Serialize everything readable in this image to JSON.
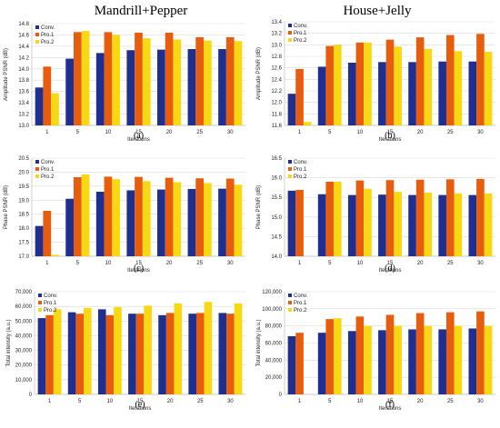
{
  "figure": {
    "left_title": "Mandrill+Pepper",
    "right_title": "House+Jelly"
  },
  "colors": {
    "Conv.": "#1f2f8f",
    "Pro.1": "#e85c0d",
    "Pro.2": "#f8d813"
  },
  "chart_data": [
    {
      "panel": "a",
      "type": "bar",
      "categories": [
        "1",
        "5",
        "10",
        "15",
        "20",
        "25",
        "30"
      ],
      "xlabel": "Iterations",
      "ylabel": "Amplitude PSNR (dB)",
      "ylim": [
        13,
        14.8
      ],
      "yticks": [
        13,
        13.2,
        13.4,
        13.6,
        13.8,
        14,
        14.2,
        14.4,
        14.6,
        14.8
      ],
      "ytick_format": 1,
      "grid": true,
      "legend": "top-left",
      "caption": "(a)",
      "series": [
        {
          "name": "Conv.",
          "values": [
            13.67,
            14.18,
            14.28,
            14.33,
            14.34,
            14.35,
            14.35
          ]
        },
        {
          "name": "Pro.1",
          "values": [
            14.04,
            14.65,
            14.65,
            14.64,
            14.64,
            14.56,
            14.56
          ]
        },
        {
          "name": "Pro.2",
          "values": [
            13.57,
            14.67,
            14.6,
            14.54,
            14.52,
            14.5,
            14.49
          ]
        }
      ]
    },
    {
      "panel": "b",
      "type": "bar",
      "categories": [
        "1",
        "5",
        "10",
        "15",
        "20",
        "25",
        "30"
      ],
      "xlabel": "Iterations",
      "ylabel": "Amplitude PSNR (dB)",
      "ylim": [
        11.6,
        13.4
      ],
      "yticks": [
        11.6,
        11.8,
        12,
        12.2,
        12.4,
        12.6,
        12.8,
        13,
        13.2,
        13.4
      ],
      "ytick_format": 1,
      "grid": true,
      "legend": "top-left",
      "caption": "(b)",
      "series": [
        {
          "name": "Conv.",
          "values": [
            12.15,
            12.62,
            12.69,
            12.7,
            12.7,
            12.71,
            12.71
          ]
        },
        {
          "name": "Pro.1",
          "values": [
            12.58,
            12.98,
            13.04,
            13.09,
            13.13,
            13.17,
            13.19
          ]
        },
        {
          "name": "Pro.2",
          "values": [
            11.66,
            13.0,
            13.04,
            12.97,
            12.93,
            12.89,
            12.88
          ]
        }
      ]
    },
    {
      "panel": "c",
      "type": "bar",
      "categories": [
        "1",
        "5",
        "10",
        "15",
        "20",
        "25",
        "30"
      ],
      "xlabel": "Iterations",
      "ylabel": "Phase PSNR (dB)",
      "ylim": [
        17,
        20.5
      ],
      "yticks": [
        17,
        17.5,
        18,
        18.5,
        19,
        19.5,
        20,
        20.5
      ],
      "ytick_format": 1,
      "grid": true,
      "legend": "top-left",
      "caption": "(c)",
      "series": [
        {
          "name": "Conv.",
          "values": [
            18.08,
            19.05,
            19.3,
            19.35,
            19.38,
            19.4,
            19.41
          ]
        },
        {
          "name": "Pro.1",
          "values": [
            18.62,
            19.82,
            19.84,
            19.83,
            19.8,
            19.78,
            19.77
          ]
        },
        {
          "name": "Pro.2",
          "values": [
            17.05,
            19.92,
            19.75,
            19.68,
            19.64,
            19.61,
            19.55
          ]
        }
      ]
    },
    {
      "panel": "d",
      "type": "bar",
      "categories": [
        "1",
        "5",
        "10",
        "15",
        "20",
        "25",
        "30"
      ],
      "xlabel": "Iterations",
      "ylabel": "Phase PSNR (dB)",
      "ylim": [
        14,
        16.5
      ],
      "yticks": [
        14,
        14.5,
        15,
        15.5,
        16,
        16.5
      ],
      "ytick_format": 1,
      "grid": true,
      "legend": "top-left",
      "caption": "(d)",
      "series": [
        {
          "name": "Conv.",
          "values": [
            15.67,
            15.58,
            15.56,
            15.57,
            15.56,
            15.56,
            15.56
          ]
        },
        {
          "name": "Pro.1",
          "values": [
            15.69,
            15.9,
            15.93,
            15.94,
            15.95,
            15.96,
            15.97
          ]
        },
        {
          "name": "Pro.2",
          "values": [
            14.0,
            15.9,
            15.72,
            15.64,
            15.62,
            15.6,
            15.6
          ]
        }
      ]
    },
    {
      "panel": "e",
      "type": "bar",
      "categories": [
        "1",
        "5",
        "10",
        "15",
        "20",
        "25",
        "30"
      ],
      "xlabel": "Iterations",
      "ylabel": "Total intensity (a.u.)",
      "ylim": [
        0,
        70000
      ],
      "yticks": [
        0,
        10000,
        20000,
        30000,
        40000,
        50000,
        60000,
        70000
      ],
      "ytick_format": "thousands",
      "grid": true,
      "legend": "top-left",
      "caption": "(e)",
      "series": [
        {
          "name": "Conv.",
          "values": [
            52000,
            56000,
            58000,
            55000,
            54000,
            55000,
            55500
          ]
        },
        {
          "name": "Pro.1",
          "values": [
            54000,
            55000,
            54000,
            55000,
            55500,
            55500,
            55000
          ]
        },
        {
          "name": "Pro.2",
          "values": [
            58000,
            59000,
            59500,
            60500,
            62000,
            63000,
            62000
          ]
        }
      ]
    },
    {
      "panel": "f",
      "type": "bar",
      "categories": [
        "1",
        "5",
        "10",
        "15",
        "20",
        "25",
        "30"
      ],
      "xlabel": "Iterations",
      "ylabel": "Total intensity (a.u.)",
      "ylim": [
        0,
        120000
      ],
      "yticks": [
        0,
        20000,
        40000,
        60000,
        80000,
        100000,
        120000
      ],
      "ytick_format": "thousands",
      "grid": true,
      "legend": "top-left",
      "caption": "(f)",
      "series": [
        {
          "name": "Conv.",
          "values": [
            68000,
            72000,
            74000,
            75000,
            76000,
            76000,
            77000
          ]
        },
        {
          "name": "Pro.1",
          "values": [
            72000,
            88000,
            91000,
            93000,
            95000,
            96000,
            97000
          ]
        },
        {
          "name": "Pro.2",
          "values": [
            0,
            89000,
            80000,
            80000,
            80000,
            80000,
            80000
          ]
        }
      ]
    }
  ]
}
